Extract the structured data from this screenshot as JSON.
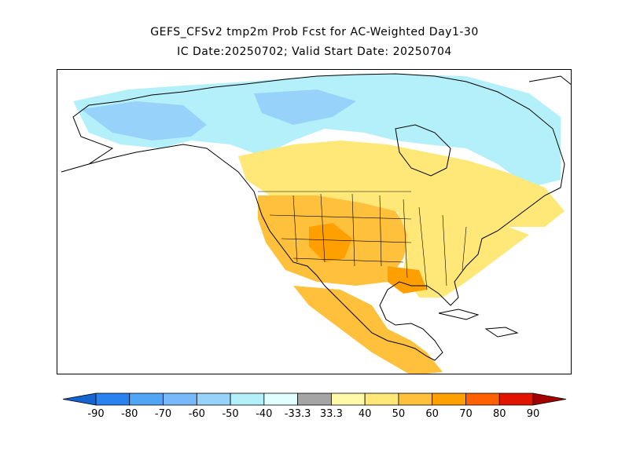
{
  "title": {
    "line1": "GEFS_CFSv2 tmp2m Prob Fcst for AC-Weighted Day1-30",
    "line2": "IC Date:20250702; Valid Start Date: 20250704"
  },
  "colorbar": {
    "bins": [
      {
        "color": "#1464d2"
      },
      {
        "color": "#2882f0"
      },
      {
        "color": "#50a5f5"
      },
      {
        "color": "#78b9fa"
      },
      {
        "color": "#96d2fa"
      },
      {
        "color": "#b4f0fa"
      },
      {
        "color": "#e1ffff"
      },
      {
        "color": "#a5a5a5"
      },
      {
        "color": "#fffaaa"
      },
      {
        "color": "#ffe878"
      },
      {
        "color": "#ffc03c"
      },
      {
        "color": "#ffa000"
      },
      {
        "color": "#ff6000"
      },
      {
        "color": "#e11400"
      },
      {
        "color": "#a50000"
      }
    ],
    "tick_labels": [
      "-90",
      "-80",
      "-70",
      "-60",
      "-50",
      "-40",
      "-33.3",
      "33.3",
      "40",
      "50",
      "60",
      "70",
      "80",
      "90"
    ]
  },
  "map": {
    "region": "North America",
    "land_color": "#ffffff",
    "border_color": "#000000"
  }
}
